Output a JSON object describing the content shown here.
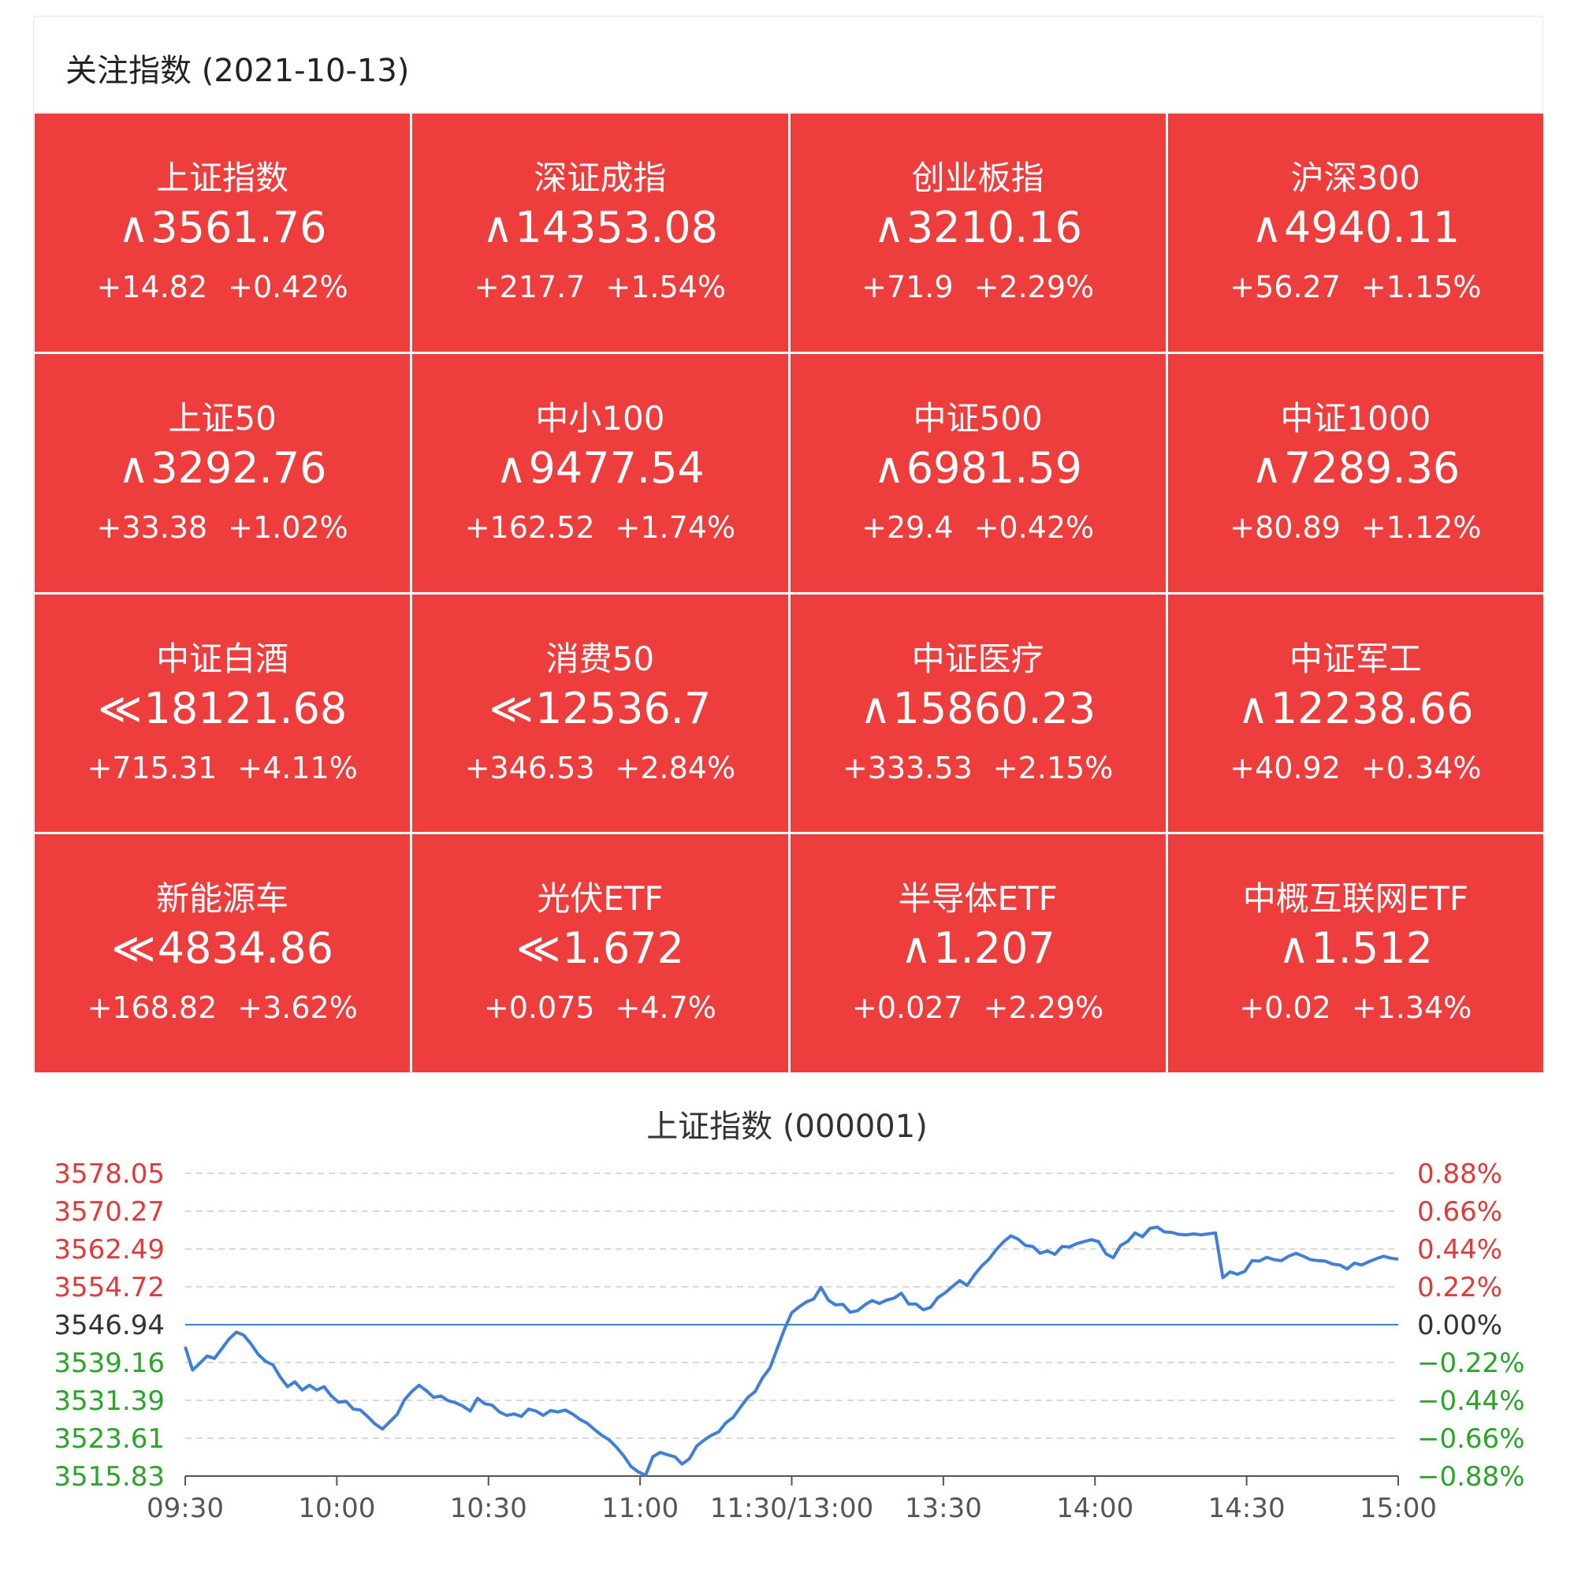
{
  "header": {
    "title": "关注指数 (2021-10-13)"
  },
  "colors": {
    "up": "#ee3d3d",
    "up_text": "#e03a3a",
    "down_text": "#2aa52a",
    "neutral_text": "#333333",
    "line": "#3f7fd8"
  },
  "tiles": [
    {
      "name": "上证指数",
      "arrow": "up-icon",
      "symbol": "∧",
      "value": "3561.76",
      "change": "+14.82",
      "pct": "+0.42%"
    },
    {
      "name": "深证成指",
      "arrow": "up-icon",
      "symbol": "∧",
      "value": "14353.08",
      "change": "+217.7",
      "pct": "+1.54%"
    },
    {
      "name": "创业板指",
      "arrow": "up-icon",
      "symbol": "∧",
      "value": "3210.16",
      "change": "+71.9",
      "pct": "+2.29%"
    },
    {
      "name": "沪深300",
      "arrow": "up-icon",
      "symbol": "∧",
      "value": "4940.11",
      "change": "+56.27",
      "pct": "+1.15%"
    },
    {
      "name": "上证50",
      "arrow": "up-icon",
      "symbol": "∧",
      "value": "3292.76",
      "change": "+33.38",
      "pct": "+1.02%"
    },
    {
      "name": "中小100",
      "arrow": "up-icon",
      "symbol": "∧",
      "value": "9477.54",
      "change": "+162.52",
      "pct": "+1.74%"
    },
    {
      "name": "中证500",
      "arrow": "up-icon",
      "symbol": "∧",
      "value": "6981.59",
      "change": "+29.4",
      "pct": "+0.42%"
    },
    {
      "name": "中证1000",
      "arrow": "up-icon",
      "symbol": "∧",
      "value": "7289.36",
      "change": "+80.89",
      "pct": "+1.12%"
    },
    {
      "name": "中证白酒",
      "arrow": "double-up-icon",
      "symbol": "≪",
      "value": "18121.68",
      "change": "+715.31",
      "pct": "+4.11%"
    },
    {
      "name": "消费50",
      "arrow": "double-up-icon",
      "symbol": "≪",
      "value": "12536.7",
      "change": "+346.53",
      "pct": "+2.84%"
    },
    {
      "name": "中证医疗",
      "arrow": "up-icon",
      "symbol": "∧",
      "value": "15860.23",
      "change": "+333.53",
      "pct": "+2.15%"
    },
    {
      "name": "中证军工",
      "arrow": "up-icon",
      "symbol": "∧",
      "value": "12238.66",
      "change": "+40.92",
      "pct": "+0.34%"
    },
    {
      "name": "新能源车",
      "arrow": "double-up-icon",
      "symbol": "≪",
      "value": "4834.86",
      "change": "+168.82",
      "pct": "+3.62%"
    },
    {
      "name": "光伏ETF",
      "arrow": "double-up-icon",
      "symbol": "≪",
      "value": "1.672",
      "change": "+0.075",
      "pct": "+4.7%"
    },
    {
      "name": "半导体ETF",
      "arrow": "up-icon",
      "symbol": "∧",
      "value": "1.207",
      "change": "+0.027",
      "pct": "+2.29%"
    },
    {
      "name": "中概互联网ETF",
      "arrow": "up-icon",
      "symbol": "∧",
      "value": "1.512",
      "change": "+0.02",
      "pct": "+1.34%"
    }
  ],
  "chart_data": {
    "type": "line",
    "title": "上证指数 (000001)",
    "x_ticks": [
      "09:30",
      "10:00",
      "10:30",
      "11:00",
      "11:30/13:00",
      "13:30",
      "14:00",
      "14:30",
      "15:00"
    ],
    "x_minutes_total": 240,
    "y_left_ticks": [
      "3578.05",
      "3570.27",
      "3562.49",
      "3554.72",
      "3546.94",
      "3539.16",
      "3531.39",
      "3523.61",
      "3515.83"
    ],
    "y_right_ticks": [
      "0.88%",
      "0.66%",
      "0.44%",
      "0.22%",
      "0.00%",
      "-0.22%",
      "-0.44%",
      "-0.66%",
      "-0.88%"
    ],
    "ylim": [
      3515.83,
      3578.05
    ],
    "baseline": 3546.94,
    "grid": "dashed-horizontal",
    "series": [
      {
        "values": [
          [
            0,
            3542.4
          ],
          [
            2,
            3537.6
          ],
          [
            4,
            3539.0
          ],
          [
            6,
            3540.5
          ],
          [
            8,
            3540.0
          ],
          [
            10,
            3542.0
          ],
          [
            12,
            3544.0
          ],
          [
            14,
            3545.4
          ],
          [
            16,
            3544.8
          ],
          [
            18,
            3543.0
          ],
          [
            20,
            3540.8
          ],
          [
            22,
            3539.4
          ],
          [
            24,
            3538.7
          ],
          [
            26,
            3536.2
          ],
          [
            28,
            3534.2
          ],
          [
            30,
            3535.2
          ],
          [
            32,
            3533.5
          ],
          [
            34,
            3534.5
          ],
          [
            36,
            3533.5
          ],
          [
            38,
            3534.2
          ],
          [
            40,
            3532.3
          ],
          [
            42,
            3531.0
          ],
          [
            44,
            3531.2
          ],
          [
            46,
            3529.6
          ],
          [
            48,
            3529.4
          ],
          [
            50,
            3528.0
          ],
          [
            52,
            3526.5
          ],
          [
            54,
            3525.5
          ],
          [
            56,
            3527.0
          ],
          [
            58,
            3528.5
          ],
          [
            60,
            3531.5
          ],
          [
            62,
            3533.2
          ],
          [
            64,
            3534.5
          ],
          [
            66,
            3533.4
          ],
          [
            68,
            3532.0
          ],
          [
            70,
            3532.3
          ],
          [
            72,
            3531.3
          ],
          [
            74,
            3530.9
          ],
          [
            76,
            3530.2
          ],
          [
            78,
            3529.2
          ],
          [
            80,
            3531.8
          ],
          [
            82,
            3530.7
          ],
          [
            84,
            3530.4
          ],
          [
            86,
            3529.0
          ],
          [
            88,
            3528.3
          ],
          [
            90,
            3528.6
          ],
          [
            92,
            3528.1
          ],
          [
            94,
            3529.6
          ],
          [
            96,
            3529.2
          ],
          [
            98,
            3528.3
          ],
          [
            100,
            3529.3
          ],
          [
            102,
            3529.0
          ],
          [
            104,
            3529.4
          ],
          [
            106,
            3528.6
          ],
          [
            108,
            3527.5
          ],
          [
            110,
            3526.7
          ],
          [
            112,
            3525.4
          ],
          [
            114,
            3524.2
          ],
          [
            116,
            3523.3
          ],
          [
            118,
            3521.8
          ],
          [
            120,
            3520.0
          ],
          [
            122,
            3517.8
          ],
          [
            124,
            3516.7
          ],
          [
            126,
            3516.0
          ],
          [
            128,
            3519.8
          ],
          [
            130,
            3520.7
          ],
          [
            132,
            3520.2
          ],
          [
            134,
            3519.8
          ],
          [
            136,
            3518.3
          ],
          [
            138,
            3519.4
          ],
          [
            140,
            3522.0
          ],
          [
            142,
            3523.2
          ],
          [
            144,
            3524.2
          ],
          [
            146,
            3524.9
          ],
          [
            148,
            3526.8
          ],
          [
            150,
            3527.9
          ],
          [
            152,
            3530.0
          ],
          [
            154,
            3532.0
          ],
          [
            156,
            3533.2
          ],
          [
            158,
            3536.0
          ],
          [
            160,
            3538.0
          ],
          [
            162,
            3542.0
          ],
          [
            164,
            3546.0
          ],
          [
            166,
            3549.4
          ],
          [
            168,
            3550.6
          ],
          [
            170,
            3551.6
          ],
          [
            172,
            3552.2
          ],
          [
            174,
            3554.6
          ],
          [
            176,
            3552.0
          ],
          [
            178,
            3551.0
          ],
          [
            180,
            3551.1
          ],
          [
            182,
            3549.5
          ],
          [
            184,
            3549.8
          ],
          [
            186,
            3551.0
          ],
          [
            188,
            3551.9
          ],
          [
            190,
            3551.3
          ],
          [
            192,
            3552.0
          ],
          [
            194,
            3552.4
          ],
          [
            196,
            3553.4
          ],
          [
            198,
            3551.2
          ],
          [
            200,
            3551.2
          ],
          [
            202,
            3550.0
          ],
          [
            204,
            3550.5
          ],
          [
            206,
            3552.5
          ],
          [
            208,
            3553.5
          ],
          [
            210,
            3554.8
          ],
          [
            212,
            3556.0
          ],
          [
            214,
            3555.0
          ],
          [
            216,
            3557.2
          ],
          [
            218,
            3559.0
          ],
          [
            220,
            3560.4
          ],
          [
            222,
            3562.4
          ],
          [
            224,
            3564.0
          ],
          [
            226,
            3565.2
          ],
          [
            228,
            3564.5
          ],
          [
            230,
            3563.2
          ],
          [
            232,
            3563.0
          ],
          [
            234,
            3561.6
          ],
          [
            236,
            3562.1
          ],
          [
            238,
            3561.4
          ],
          [
            240,
            3563.0
          ],
          [
            242,
            3562.9
          ],
          [
            244,
            3563.6
          ],
          [
            246,
            3564.0
          ],
          [
            248,
            3564.4
          ],
          [
            250,
            3564.0
          ],
          [
            252,
            3561.5
          ],
          [
            254,
            3560.7
          ],
          [
            256,
            3563.2
          ],
          [
            258,
            3564.1
          ],
          [
            260,
            3565.8
          ],
          [
            262,
            3565.0
          ],
          [
            264,
            3566.7
          ],
          [
            266,
            3567.0
          ],
          [
            268,
            3566.0
          ],
          [
            270,
            3565.9
          ],
          [
            272,
            3565.5
          ],
          [
            274,
            3565.4
          ],
          [
            276,
            3565.6
          ],
          [
            278,
            3565.4
          ],
          [
            280,
            3565.6
          ],
          [
            282,
            3565.8
          ],
          [
            284,
            3556.6
          ],
          [
            286,
            3557.8
          ],
          [
            288,
            3557.3
          ],
          [
            290,
            3557.9
          ],
          [
            292,
            3560.1
          ],
          [
            294,
            3560.0
          ],
          [
            296,
            3560.8
          ],
          [
            298,
            3560.3
          ],
          [
            300,
            3560.1
          ],
          [
            302,
            3561.0
          ],
          [
            304,
            3561.6
          ],
          [
            306,
            3561.0
          ],
          [
            308,
            3560.3
          ],
          [
            310,
            3560.1
          ],
          [
            312,
            3560.0
          ],
          [
            314,
            3559.4
          ],
          [
            316,
            3559.2
          ],
          [
            318,
            3558.4
          ],
          [
            320,
            3559.6
          ],
          [
            322,
            3559.2
          ],
          [
            324,
            3559.9
          ],
          [
            326,
            3560.5
          ],
          [
            328,
            3561.0
          ],
          [
            330,
            3560.6
          ],
          [
            332,
            3560.4
          ]
        ]
      }
    ]
  }
}
